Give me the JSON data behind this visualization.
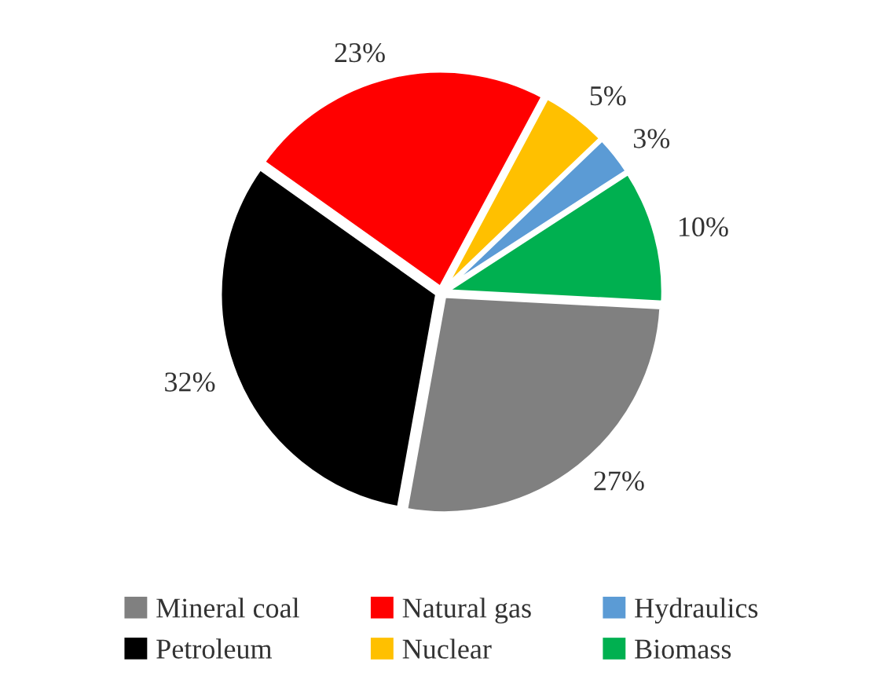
{
  "chart_data": {
    "type": "pie",
    "categories": [
      "Mineral coal",
      "Petroleum",
      "Natural gas",
      "Nuclear",
      "Hydraulics",
      "Biomass"
    ],
    "values": [
      27,
      32,
      23,
      5,
      3,
      10
    ],
    "colors": [
      "#808080",
      "#000000",
      "#ff0000",
      "#ffc000",
      "#5b9bd5",
      "#00b050"
    ],
    "value_labels": [
      "27%",
      "32%",
      "23%",
      "5%",
      "3%",
      "10%"
    ],
    "legend": "bottom"
  }
}
